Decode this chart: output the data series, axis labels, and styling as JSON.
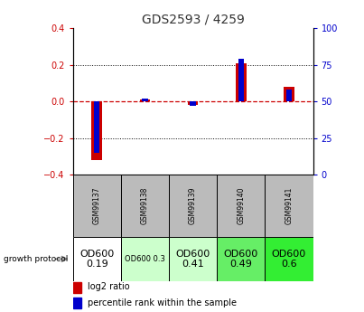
{
  "title": "GDS2593 / 4259",
  "samples": [
    "GSM99137",
    "GSM99138",
    "GSM99139",
    "GSM99140",
    "GSM99141"
  ],
  "log2_ratios": [
    -0.32,
    0.01,
    -0.02,
    0.21,
    0.08
  ],
  "percentile_ranks": [
    15,
    52,
    47,
    79,
    58
  ],
  "ylim": [
    -0.4,
    0.4
  ],
  "yticks_left": [
    -0.4,
    -0.2,
    0.0,
    0.2,
    0.4
  ],
  "ytick_labels_left": [
    "-0.4",
    "-0.2",
    "0",
    "0.2",
    "0.4"
  ],
  "right_yticks": [
    0,
    25,
    50,
    75,
    100
  ],
  "right_ylim": [
    0,
    100
  ],
  "red_color": "#cc0000",
  "blue_color": "#0000cc",
  "title_color": "#333333",
  "axis_color_left": "#cc0000",
  "axis_color_right": "#0000cc",
  "growth_protocol_labels": [
    "OD600\n0.19",
    "OD600 0.3",
    "OD600\n0.41",
    "OD600\n0.49",
    "OD600\n0.6"
  ],
  "cell_bg_colors": [
    "#ffffff",
    "#ccffcc",
    "#ccffcc",
    "#66ee66",
    "#33ee33"
  ],
  "cell_font_sizes": [
    8,
    6,
    8,
    8,
    8
  ],
  "legend_red": "log2 ratio",
  "legend_blue": "percentile rank within the sample",
  "header_bg": "#bbbbbb",
  "plot_bg": "#ffffff"
}
